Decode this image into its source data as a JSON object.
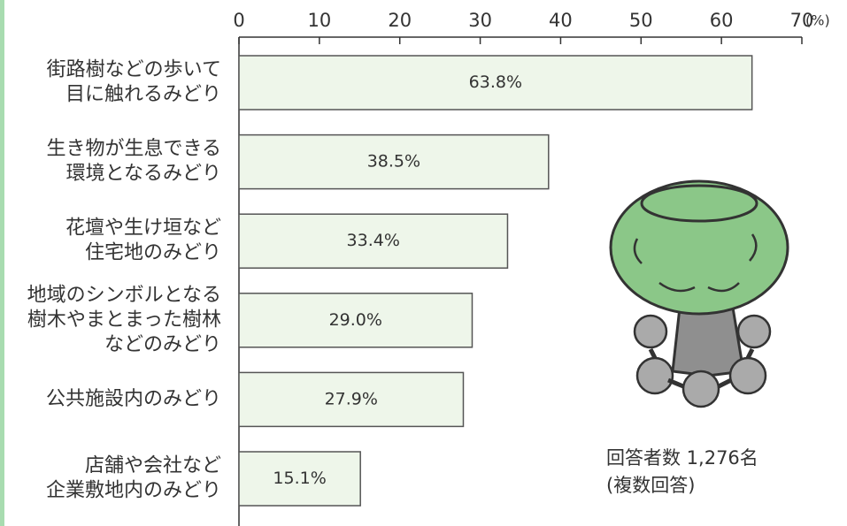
{
  "chart_data": {
    "type": "bar",
    "orientation": "horizontal",
    "categories": [
      [
        "街路樹などの歩いて",
        "目に触れるみどり"
      ],
      [
        "生き物が生息できる",
        "環境となるみどり"
      ],
      [
        "花壇や生け垣など",
        "住宅地のみどり"
      ],
      [
        "地域のシンボルとなる",
        "樹木やまとまった樹林",
        "などのみどり"
      ],
      [
        "公共施設内のみどり"
      ],
      [
        "店舗や会社など",
        "企業敷地内のみどり"
      ]
    ],
    "values": [
      63.8,
      38.5,
      33.4,
      29.0,
      27.9,
      15.1
    ],
    "value_labels": [
      "63.8%",
      "38.5%",
      "33.4%",
      "29.0%",
      "27.9%",
      "15.1%"
    ],
    "color": "#eef6ea",
    "xlim": [
      0,
      70
    ],
    "xticks": [
      0,
      10,
      20,
      30,
      40,
      50,
      60,
      70
    ],
    "unit_label": "(%)",
    "annotations": [
      "回答者数 1,276名",
      "(複数回答)"
    ]
  }
}
